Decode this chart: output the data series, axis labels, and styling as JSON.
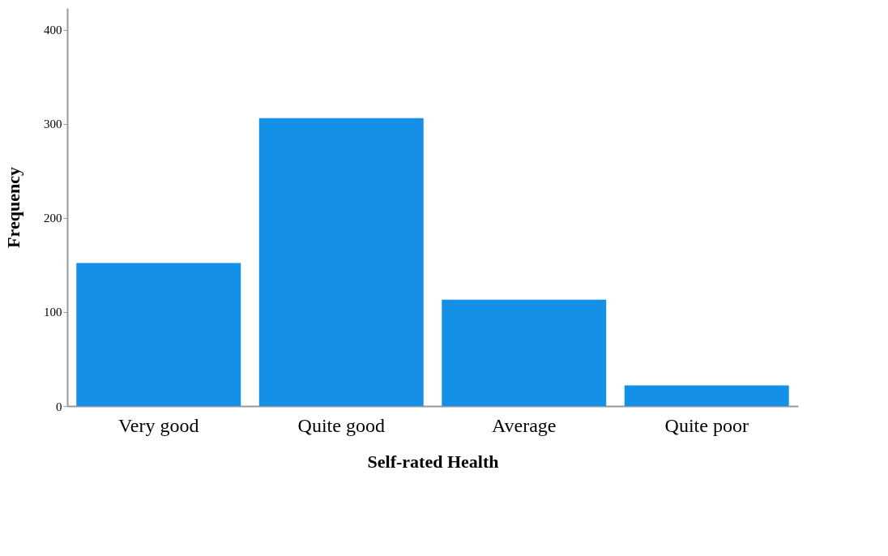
{
  "chart_data": {
    "type": "bar",
    "xlabel": "Self-rated Health",
    "ylabel": "Frequency",
    "categories": [
      "Very good",
      "Quite good",
      "Average",
      "Quite poor"
    ],
    "values": [
      152,
      306,
      113,
      22
    ],
    "color": "#1490e6",
    "ylim": [
      0,
      423
    ],
    "yticks": [
      0,
      100,
      200,
      300,
      400
    ],
    "grid": false
  }
}
